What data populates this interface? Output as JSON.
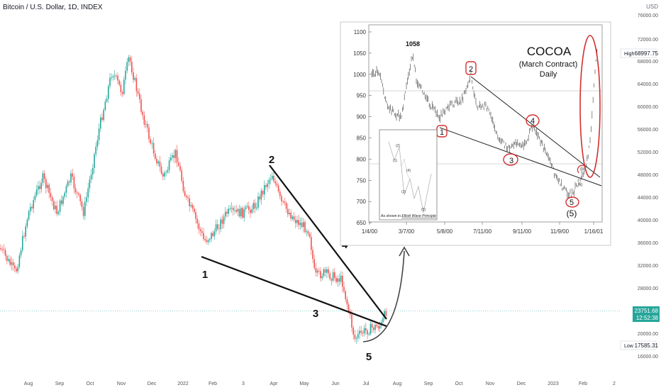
{
  "header": {
    "title": "Bitcoin / U.S. Dollar, 1D, INDEX"
  },
  "price_axis": {
    "currency": "USD",
    "labels": [
      "76000.00",
      "72000.00",
      "68000.00",
      "64000.00",
      "60000.00",
      "56000.00",
      "52000.00",
      "48000.00",
      "44000.00",
      "40000.00",
      "36000.00",
      "32000.00",
      "28000.00",
      "24000.00",
      "20000.00",
      "16000.00"
    ],
    "high_tag": "High",
    "high_value": "68997.75",
    "low_tag": "Low",
    "low_value": "17585.31",
    "last_price": "23751.68",
    "countdown": "12:52:38"
  },
  "time_axis": {
    "labels": [
      "Aug",
      "Sep",
      "Oct",
      "Nov",
      "Dec",
      "2022",
      "Feb",
      "3",
      "Apr",
      "May",
      "Jun",
      "Jul",
      "Aug",
      "Sep",
      "Oct",
      "Nov",
      "Dec",
      "2023",
      "Feb",
      "2"
    ]
  },
  "btc_wave_labels": [
    "1",
    "2",
    "3",
    "4",
    "5"
  ],
  "colors": {
    "up": "#26a69a",
    "down": "#ef5350",
    "last_price": "#26a69a"
  },
  "inset": {
    "title": "COCOA",
    "subtitle": "(March Contract)",
    "period": "Daily",
    "y_labels": [
      "1100",
      "1050",
      "1000",
      "950",
      "900",
      "850",
      "800",
      "750",
      "700",
      "650"
    ],
    "x_labels": [
      "1/4/00",
      "3/7/00",
      "5/8/00",
      "7/11/00",
      "9/11/00",
      "11/9/00",
      "1/16/01"
    ],
    "peak_label": "1058",
    "wave_labels": [
      "1",
      "2",
      "3",
      "4",
      "5"
    ],
    "fifth_label": "(5)",
    "iii_label": "(iii)",
    "ii_label": "(ii)",
    "mini_caption_prefix": "As shown in ",
    "mini_caption_book": "Elliott Wave Principle",
    "mini_labels": [
      "(1)",
      "(2)",
      "(3)",
      "(4)",
      "(5)"
    ],
    "annotation_color": "#d32f2f"
  },
  "chart_data": {
    "type": "candlestick",
    "title": "Bitcoin / U.S. Dollar, 1D, INDEX",
    "ylim": [
      14000,
      78000
    ],
    "x": [
      "2021-07",
      "2021-08",
      "2021-09",
      "2021-10",
      "2021-11",
      "2021-12",
      "2022-01",
      "2022-02",
      "2022-03",
      "2022-04",
      "2022-05",
      "2022-06",
      "2022-07"
    ],
    "close": [
      40000,
      47000,
      43000,
      61000,
      57000,
      47000,
      38000,
      43000,
      45500,
      38000,
      31500,
      19800,
      23750
    ],
    "high": 68997.75,
    "low": 17585.31,
    "last": 23751.68
  }
}
